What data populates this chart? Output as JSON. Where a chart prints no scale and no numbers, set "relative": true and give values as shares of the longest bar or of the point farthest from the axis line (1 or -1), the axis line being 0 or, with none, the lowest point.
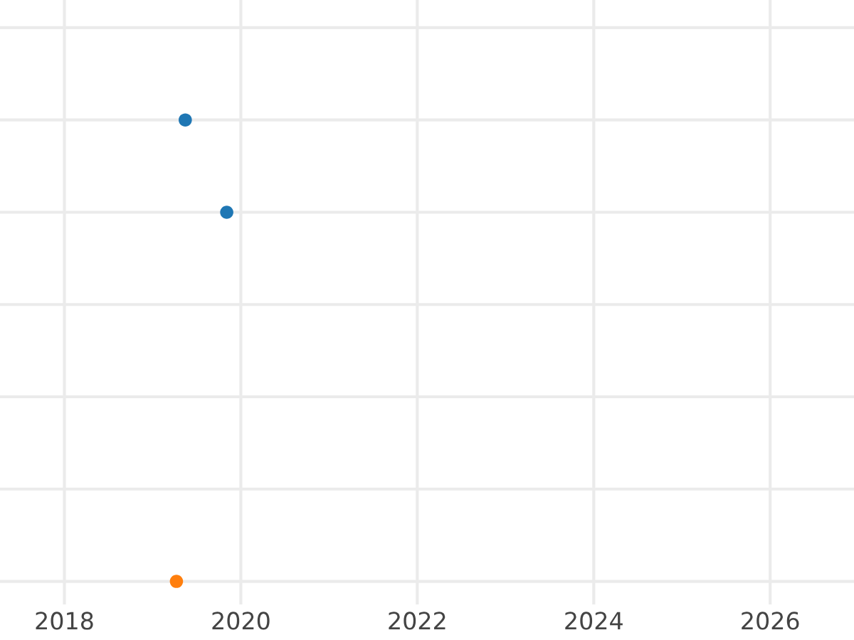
{
  "chart_data": {
    "type": "scatter",
    "relative": true,
    "series": [
      {
        "color": "#1f77b4",
        "x": [
          2019.37,
          2019.84
        ],
        "values": [
          1,
          0.8
        ]
      },
      {
        "color": "#ff7f0e",
        "x": [
          2019.27
        ],
        "values": [
          0
        ]
      }
    ],
    "xlim": [
      2017.27,
      2026.95
    ],
    "xticks": [
      2018,
      2020,
      2022,
      2024,
      2026
    ],
    "grid": true,
    "marker": "circle",
    "tick_labels": "x"
  }
}
